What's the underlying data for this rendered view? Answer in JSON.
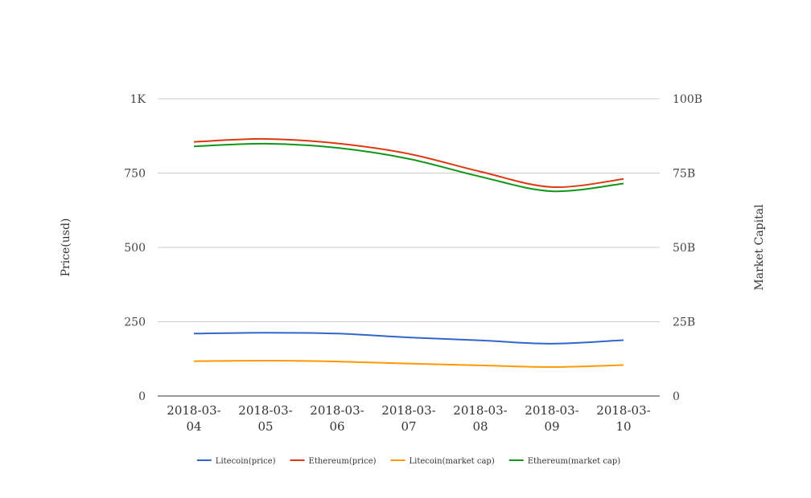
{
  "chart_data": {
    "type": "line",
    "x": [
      "2018-03-04",
      "2018-03-05",
      "2018-03-06",
      "2018-03-07",
      "2018-03-08",
      "2018-03-09",
      "2018-03-10"
    ],
    "x_tick_labels": [
      [
        "2018-03-",
        "04"
      ],
      [
        "2018-03-",
        "05"
      ],
      [
        "2018-03-",
        "06"
      ],
      [
        "2018-03-",
        "07"
      ],
      [
        "2018-03-",
        "08"
      ],
      [
        "2018-03-",
        "09"
      ],
      [
        "2018-03-",
        "10"
      ]
    ],
    "ylabel": "Price(usd)",
    "y2label": "Market Capital",
    "ylim": [
      0,
      1000
    ],
    "y2lim": [
      0,
      100000000000
    ],
    "y_ticks": [
      {
        "value": 0,
        "label": "0"
      },
      {
        "value": 250,
        "label": "250"
      },
      {
        "value": 500,
        "label": "500"
      },
      {
        "value": 750,
        "label": "750"
      },
      {
        "value": 1000,
        "label": "1K"
      }
    ],
    "y2_ticks": [
      {
        "value": 0,
        "label": "0"
      },
      {
        "value": 25000000000,
        "label": "25B"
      },
      {
        "value": 50000000000,
        "label": "50B"
      },
      {
        "value": 75000000000,
        "label": "75B"
      },
      {
        "value": 100000000000,
        "label": "100B"
      }
    ],
    "grid": true,
    "legend_position": "bottom",
    "series": [
      {
        "name": "Litecoin(price)",
        "axis": "left",
        "color": "#3366cc",
        "values": [
          210,
          213,
          210,
          197,
          187,
          176,
          188
        ]
      },
      {
        "name": "Ethereum(price)",
        "axis": "left",
        "color": "#dc3912",
        "values": [
          855,
          865,
          850,
          815,
          755,
          703,
          730
        ]
      },
      {
        "name": "Litecoin(market cap)",
        "axis": "right",
        "color": "#ff9900",
        "values": [
          11700000000,
          11900000000,
          11600000000,
          10900000000,
          10300000000,
          9750000000,
          10400000000
        ]
      },
      {
        "name": "Ethereum(market cap)",
        "axis": "right",
        "color": "#109618",
        "values": [
          84000000000,
          84900000000,
          83500000000,
          79800000000,
          73800000000,
          68900000000,
          71500000000
        ]
      }
    ]
  }
}
